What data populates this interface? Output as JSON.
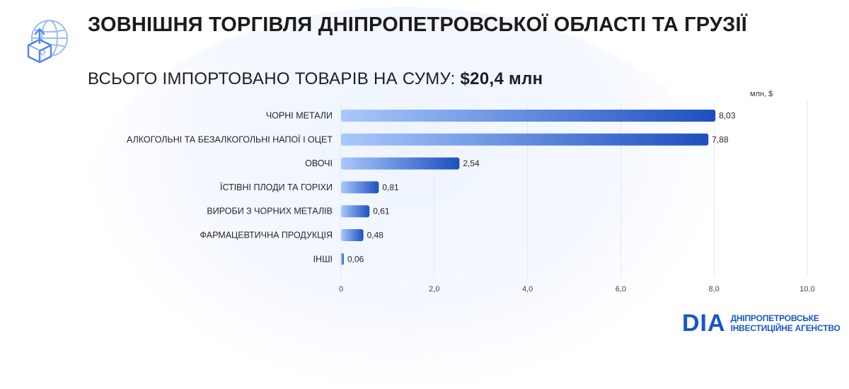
{
  "header": {
    "title": "ЗОВНІШНЯ ТОРГІВЛЯ ДНІПРОПЕТРОВСЬКОЇ ОБЛАСТІ ТА ГРУЗІЇ",
    "subtitle_prefix": "ВСЬОГО ІМПОРТОВАНО ТОВАРІВ НА СУМУ:",
    "subtitle_total": "$20,4 млн",
    "icon": "globe-box-upload-icon"
  },
  "chart_data": {
    "type": "bar",
    "orientation": "horizontal",
    "unit": "млн, $",
    "categories": [
      "ЧОРНІ МЕТАЛИ",
      "АЛКОГОЛЬНІ ТА БЕЗАЛКОГОЛЬНІ НАПОЇ І ОЦЕТ",
      "ОВОЧІ",
      "ЇСТІВНІ ПЛОДИ ТА ГОРІХИ",
      "ВИРОБИ З ЧОРНИХ МЕТАЛІВ",
      "ФАРМАЦЕВТИЧНА ПРОДУКЦІЯ",
      "ІНШІ"
    ],
    "values": [
      8.03,
      7.88,
      2.54,
      0.81,
      0.61,
      0.48,
      0.06
    ],
    "value_labels": [
      "8,03",
      "7,88",
      "2,54",
      "0,81",
      "0,61",
      "0,48",
      "0,06"
    ],
    "xlim": [
      0,
      10
    ],
    "x_ticks": [
      0,
      2,
      4,
      6,
      8,
      10
    ],
    "x_tick_labels": [
      "0",
      "2,0",
      "4,0",
      "6,0",
      "8,0",
      "10,0"
    ],
    "grid": true,
    "colors": {
      "bar_start": "#a9c8fb",
      "bar_end": "#1d4fbf",
      "grid": "#e3e7ef"
    }
  },
  "logo": {
    "mark": "DIA",
    "line1": "ДНІПРОПЕТРОВСЬКЕ",
    "line2": "ІНВЕСТИЦІЙНЕ АГЕНСТВО"
  }
}
